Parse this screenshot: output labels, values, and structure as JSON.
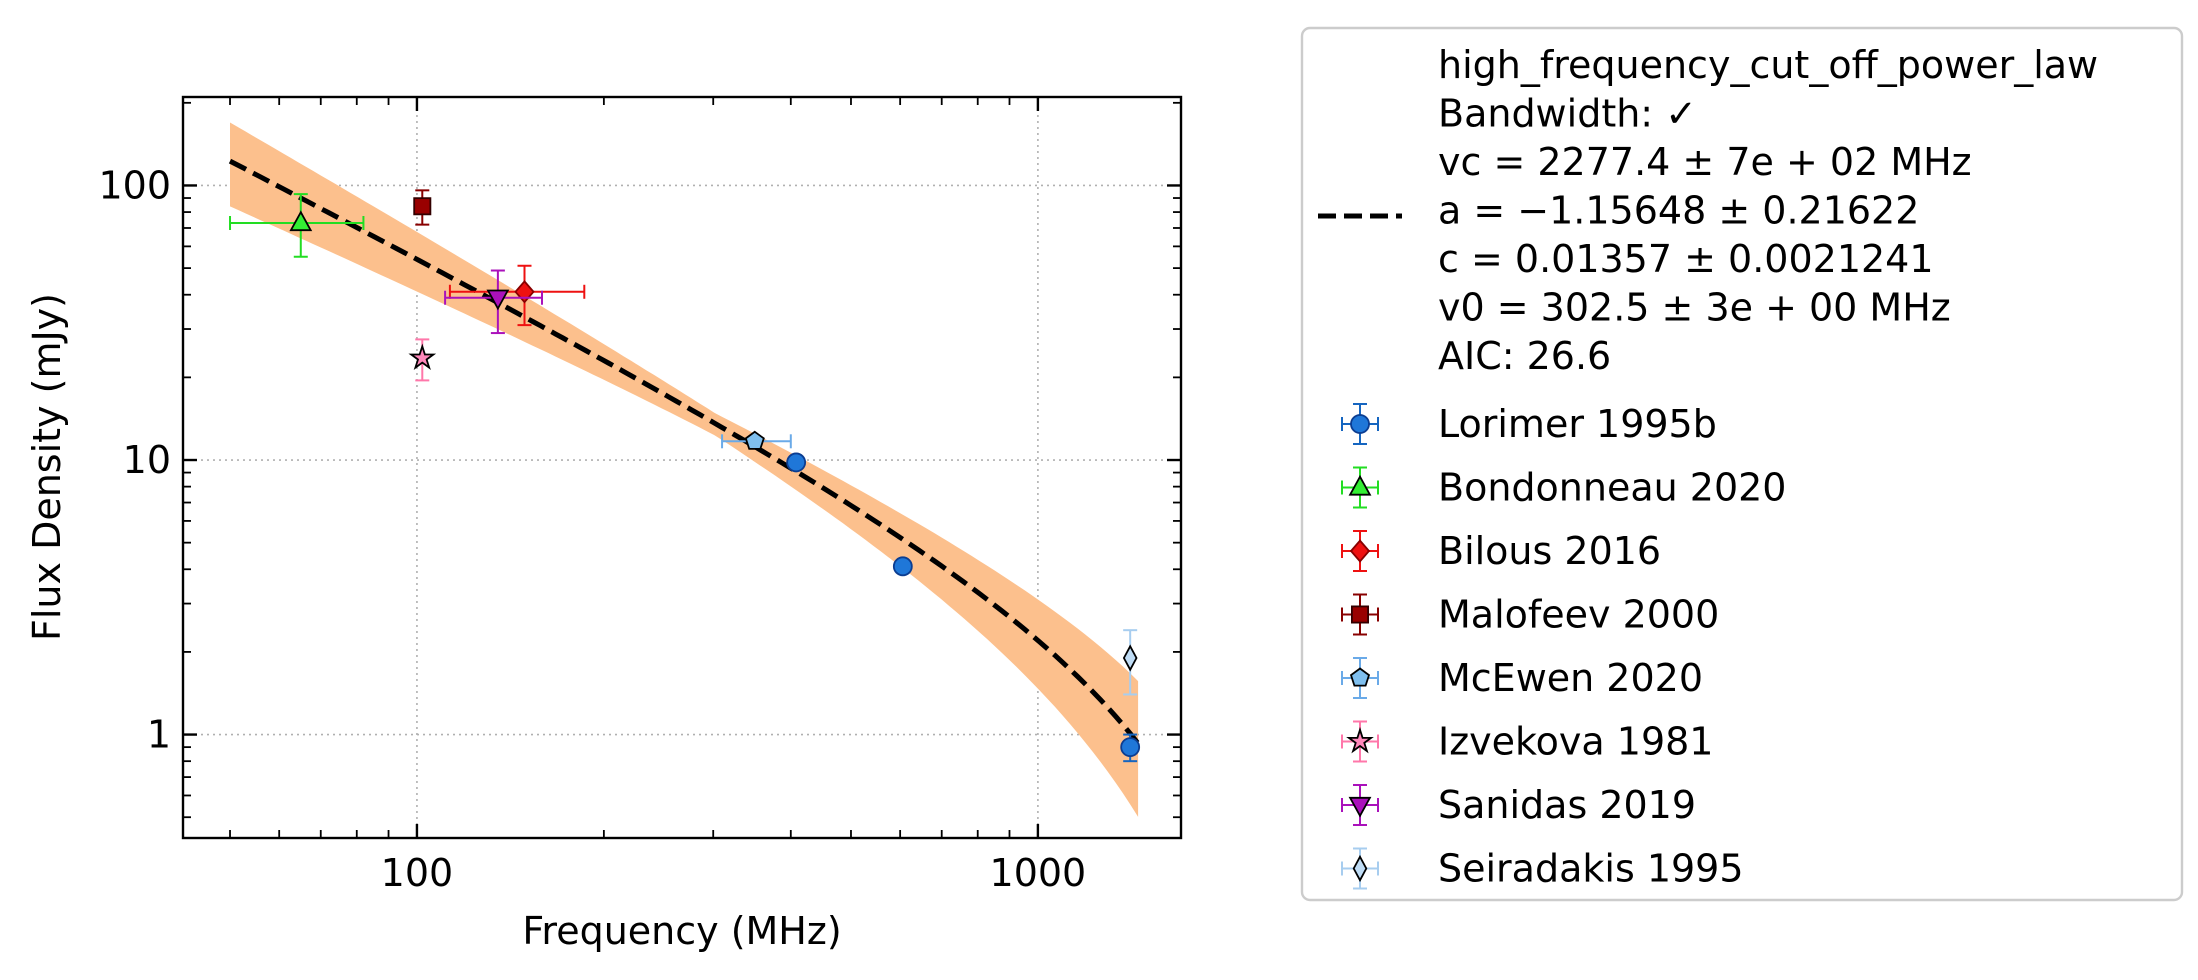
{
  "chart_data": {
    "type": "scatter",
    "title": "",
    "xlabel": "Frequency (MHz)",
    "ylabel": "Flux Density (mJy)",
    "xscale": "log",
    "yscale": "log",
    "xlim": [
      42,
      1700
    ],
    "ylim": [
      0.42,
      210
    ],
    "x_ticks": [
      100,
      1000
    ],
    "x_tick_labels": [
      "100",
      "1000"
    ],
    "y_ticks": [
      1,
      10,
      100
    ],
    "y_tick_labels": [
      "1",
      "10",
      "100"
    ],
    "grid": true,
    "legend_position": "outside-right",
    "fit": {
      "model": "high_frequency_cut_off_power_law",
      "label_lines": [
        "high_frequency_cut_off_power_law",
        "Bandwidth: ✓",
        "vc = 2277.4 ± 7e + 02 MHz",
        "a = −1.15648 ± 0.21622",
        "c = 0.01357 ± 0.0021241",
        "v0 = 302.5 ± 3e + 00 MHz",
        "AIC: 26.6"
      ],
      "vc": 2277.4,
      "a": -1.15648,
      "c": 0.01357,
      "v0": 302.5,
      "x_range": [
        50,
        1450
      ],
      "line_color": "#000000",
      "band_color": "#fcc08d"
    },
    "series": [
      {
        "name": "Lorimer 1995b",
        "marker": "circle",
        "color": "#1f77d8",
        "edge": "#0b3d91",
        "errcolor": "#1565c0",
        "points": [
          {
            "x": 408,
            "y": 9.8
          },
          {
            "x": 606,
            "y": 4.1
          },
          {
            "x": 1408,
            "y": 0.9,
            "yerr": [
              0.1,
              0.1
            ]
          }
        ]
      },
      {
        "name": "Bondonneau 2020",
        "marker": "triangle-up",
        "color": "#33ee33",
        "edge": "#000000",
        "errcolor": "#22dd22",
        "points": [
          {
            "x": 65,
            "y": 73,
            "xerr": [
              15,
              17
            ],
            "yerr": [
              18,
              20
            ]
          }
        ]
      },
      {
        "name": "Bilous 2016",
        "marker": "diamond",
        "color": "#ee1111",
        "edge": "#880000",
        "errcolor": "#ee1111",
        "points": [
          {
            "x": 149,
            "y": 41,
            "xerr": [
              36,
              37
            ],
            "yerr": [
              10,
              10
            ]
          }
        ]
      },
      {
        "name": "Malofeev 2000",
        "marker": "square",
        "color": "#990000",
        "edge": "#330000",
        "errcolor": "#880000",
        "points": [
          {
            "x": 102,
            "y": 84,
            "yerr": [
              12,
              12
            ]
          }
        ]
      },
      {
        "name": "McEwen 2020",
        "marker": "pentagon",
        "color": "#7fbfee",
        "edge": "#000000",
        "errcolor": "#6aaae8",
        "points": [
          {
            "x": 350,
            "y": 11.7,
            "xerr": [
              40,
              50
            ]
          }
        ]
      },
      {
        "name": "Izvekova 1981",
        "marker": "star",
        "color": "#ff88bb",
        "edge": "#000000",
        "errcolor": "#ff77aa",
        "points": [
          {
            "x": 102,
            "y": 23.5,
            "yerr": [
              4,
              4
            ]
          }
        ]
      },
      {
        "name": "Sanidas 2019",
        "marker": "triangle-down",
        "color": "#aa11bb",
        "edge": "#000000",
        "errcolor": "#aa11bb",
        "points": [
          {
            "x": 135,
            "y": 39,
            "xerr": [
              24,
              24
            ],
            "yerr": [
              10,
              10
            ]
          }
        ]
      },
      {
        "name": "Seiradakis 1995",
        "marker": "thin-diamond",
        "color": "#bfdcf5",
        "edge": "#000000",
        "errcolor": "#a7cdef",
        "points": [
          {
            "x": 1408,
            "y": 1.9,
            "yerr": [
              0.5,
              0.5
            ]
          }
        ]
      }
    ]
  }
}
